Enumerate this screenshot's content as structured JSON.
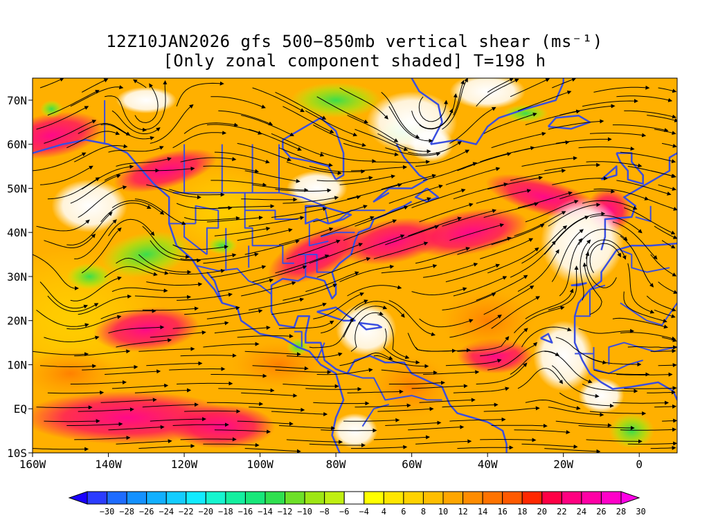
{
  "title": {
    "line1": "12Z10JAN2026 gfs 500−850mb vertical shear (ms⁻¹)",
    "line2": "[Only zonal component shaded] T=198 h"
  },
  "map": {
    "lon_range": [
      -160,
      10
    ],
    "lat_range": [
      -10,
      75
    ],
    "x_ticks": [
      "160W",
      "140W",
      "120W",
      "100W",
      "80W",
      "60W",
      "40W",
      "20W",
      "0"
    ],
    "y_ticks": [
      "10S",
      "EQ",
      "10N",
      "20N",
      "30N",
      "40N",
      "50N",
      "60N",
      "70N"
    ],
    "coast_color": "#3a4ee0",
    "streamline_color": "#000000"
  },
  "colorbar": {
    "labels": [
      "−30",
      "−28",
      "−26",
      "−24",
      "−22",
      "−20",
      "−18",
      "−16",
      "−14",
      "−12",
      "−10",
      "−8",
      "−6",
      "−4",
      "4",
      "6",
      "8",
      "10",
      "12",
      "14",
      "16",
      "18",
      "20",
      "22",
      "24",
      "26",
      "28",
      "30"
    ],
    "colors": [
      "#1a00ff",
      "#2b3cff",
      "#1e6cff",
      "#1491ff",
      "#12b0ff",
      "#14cdff",
      "#12ebff",
      "#16f5cf",
      "#14ef9f",
      "#18e77a",
      "#30e050",
      "#6ee028",
      "#9ee614",
      "#c0ef12",
      "#ffffff",
      "#ffff00",
      "#ffe600",
      "#ffd200",
      "#ffbe00",
      "#ffa600",
      "#ff8c00",
      "#ff7300",
      "#ff5a00",
      "#ff2800",
      "#ff0045",
      "#ff0080",
      "#ff00a5",
      "#ff00c8",
      "#ff00e6"
    ]
  }
}
